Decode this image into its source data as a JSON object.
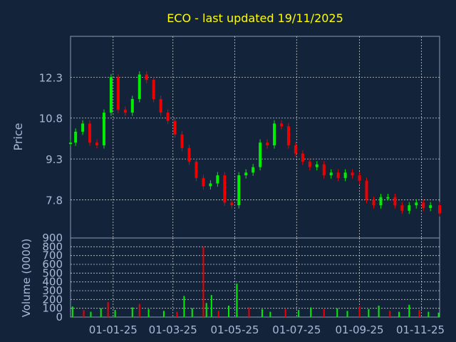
{
  "colors": {
    "background": "#13243a",
    "axis_text": "#aab8d8",
    "title": "#ffff00",
    "grid": "#ffffff",
    "up": "#00ee00",
    "down": "#ee0000"
  },
  "chart_data": [
    {
      "type": "candlestick",
      "title": "ECO - last updated 19/11/2025",
      "ylabel": "Price",
      "xlabel": "",
      "ylim": [
        6.4,
        13.8
      ],
      "y_ticks": [
        "12.3",
        "10.8",
        "9.3",
        "7.8"
      ],
      "y_tick_values": [
        12.3,
        10.8,
        9.3,
        7.8
      ],
      "x_ticks": [
        "01-01-25",
        "01-03-25",
        "01-05-25",
        "01-07-25",
        "01-09-25",
        "01-11-25"
      ],
      "x_tick_dates": [
        "2025-01-01",
        "2025-03-01",
        "2025-05-01",
        "2025-07-01",
        "2025-09-01",
        "2025-11-01"
      ],
      "date_range": [
        "2024-11-20",
        "2025-11-19"
      ],
      "grid": true,
      "series": [
        {
          "values": [
            {
              "date": "2024-11-20",
              "close": 9.9
            },
            {
              "date": "2024-11-25",
              "close": 10.3
            },
            {
              "date": "2024-12-02",
              "close": 10.6
            },
            {
              "date": "2024-12-09",
              "close": 9.9
            },
            {
              "date": "2024-12-16",
              "close": 9.8
            },
            {
              "date": "2024-12-23",
              "close": 11.0
            },
            {
              "date": "2024-12-30",
              "close": 12.3
            },
            {
              "date": "2025-01-06",
              "close": 11.1
            },
            {
              "date": "2025-01-13",
              "close": 11.0
            },
            {
              "date": "2025-01-20",
              "close": 11.5
            },
            {
              "date": "2025-01-27",
              "close": 12.4
            },
            {
              "date": "2025-02-03",
              "close": 12.2
            },
            {
              "date": "2025-02-10",
              "close": 11.5
            },
            {
              "date": "2025-02-17",
              "close": 11.0
            },
            {
              "date": "2025-02-24",
              "close": 10.7
            },
            {
              "date": "2025-03-03",
              "close": 10.2
            },
            {
              "date": "2025-03-10",
              "close": 9.7
            },
            {
              "date": "2025-03-17",
              "close": 9.2
            },
            {
              "date": "2025-03-24",
              "close": 8.6
            },
            {
              "date": "2025-03-31",
              "close": 8.3
            },
            {
              "date": "2025-04-07",
              "close": 8.4
            },
            {
              "date": "2025-04-14",
              "close": 8.7
            },
            {
              "date": "2025-04-21",
              "close": 7.7
            },
            {
              "date": "2025-04-28",
              "close": 7.6
            },
            {
              "date": "2025-05-05",
              "close": 8.7
            },
            {
              "date": "2025-05-12",
              "close": 8.8
            },
            {
              "date": "2025-05-19",
              "close": 9.0
            },
            {
              "date": "2025-05-26",
              "close": 9.9
            },
            {
              "date": "2025-06-02",
              "close": 9.8
            },
            {
              "date": "2025-06-09",
              "close": 10.6
            },
            {
              "date": "2025-06-16",
              "close": 10.5
            },
            {
              "date": "2025-06-23",
              "close": 9.8
            },
            {
              "date": "2025-06-30",
              "close": 9.5
            },
            {
              "date": "2025-07-07",
              "close": 9.2
            },
            {
              "date": "2025-07-14",
              "close": 9.0
            },
            {
              "date": "2025-07-21",
              "close": 9.1
            },
            {
              "date": "2025-07-28",
              "close": 8.7
            },
            {
              "date": "2025-08-04",
              "close": 8.8
            },
            {
              "date": "2025-08-11",
              "close": 8.6
            },
            {
              "date": "2025-08-18",
              "close": 8.8
            },
            {
              "date": "2025-08-25",
              "close": 8.7
            },
            {
              "date": "2025-09-01",
              "close": 8.5
            },
            {
              "date": "2025-09-08",
              "close": 7.8
            },
            {
              "date": "2025-09-15",
              "close": 7.6
            },
            {
              "date": "2025-09-22",
              "close": 7.9
            },
            {
              "date": "2025-09-29",
              "close": 7.9
            },
            {
              "date": "2025-10-06",
              "close": 7.6
            },
            {
              "date": "2025-10-13",
              "close": 7.4
            },
            {
              "date": "2025-10-20",
              "close": 7.6
            },
            {
              "date": "2025-10-27",
              "close": 7.7
            },
            {
              "date": "2025-11-03",
              "close": 7.5
            },
            {
              "date": "2025-11-10",
              "close": 7.6
            },
            {
              "date": "2025-11-19",
              "close": 7.3
            }
          ]
        }
      ]
    },
    {
      "type": "bar",
      "ylabel": "Volume (0000)",
      "ylim": [
        0,
        900
      ],
      "y_ticks": [
        "900",
        "800",
        "700",
        "600",
        "500",
        "400",
        "300",
        "200",
        "100",
        "0"
      ],
      "y_tick_values": [
        900,
        800,
        700,
        600,
        500,
        400,
        300,
        200,
        100,
        0
      ],
      "grid": true,
      "series": [
        {
          "values": [
            {
              "date": "2024-11-22",
              "volume": 120
            },
            {
              "date": "2024-12-03",
              "volume": 80
            },
            {
              "date": "2024-12-10",
              "volume": 60
            },
            {
              "date": "2024-12-20",
              "volume": 100
            },
            {
              "date": "2024-12-27",
              "volume": 170
            },
            {
              "date": "2025-01-03",
              "volume": 80
            },
            {
              "date": "2025-01-20",
              "volume": 110
            },
            {
              "date": "2025-01-27",
              "volume": 150
            },
            {
              "date": "2025-02-05",
              "volume": 90
            },
            {
              "date": "2025-02-20",
              "volume": 70
            },
            {
              "date": "2025-03-05",
              "volume": 60
            },
            {
              "date": "2025-03-12",
              "volume": 240
            },
            {
              "date": "2025-03-20",
              "volume": 100
            },
            {
              "date": "2025-03-31",
              "volume": 800
            },
            {
              "date": "2025-04-03",
              "volume": 160
            },
            {
              "date": "2025-04-08",
              "volume": 250
            },
            {
              "date": "2025-04-15",
              "volume": 70
            },
            {
              "date": "2025-04-25",
              "volume": 130
            },
            {
              "date": "2025-05-03",
              "volume": 380
            },
            {
              "date": "2025-05-15",
              "volume": 110
            },
            {
              "date": "2025-05-28",
              "volume": 90
            },
            {
              "date": "2025-06-05",
              "volume": 60
            },
            {
              "date": "2025-06-20",
              "volume": 90
            },
            {
              "date": "2025-07-03",
              "volume": 80
            },
            {
              "date": "2025-07-15",
              "volume": 110
            },
            {
              "date": "2025-07-28",
              "volume": 90
            },
            {
              "date": "2025-08-10",
              "volume": 100
            },
            {
              "date": "2025-08-20",
              "volume": 70
            },
            {
              "date": "2025-09-01",
              "volume": 120
            },
            {
              "date": "2025-09-10",
              "volume": 90
            },
            {
              "date": "2025-09-20",
              "volume": 130
            },
            {
              "date": "2025-10-01",
              "volume": 70
            },
            {
              "date": "2025-10-10",
              "volume": 60
            },
            {
              "date": "2025-10-20",
              "volume": 140
            },
            {
              "date": "2025-10-30",
              "volume": 80
            },
            {
              "date": "2025-11-08",
              "volume": 60
            },
            {
              "date": "2025-11-18",
              "volume": 50
            }
          ]
        }
      ]
    }
  ]
}
